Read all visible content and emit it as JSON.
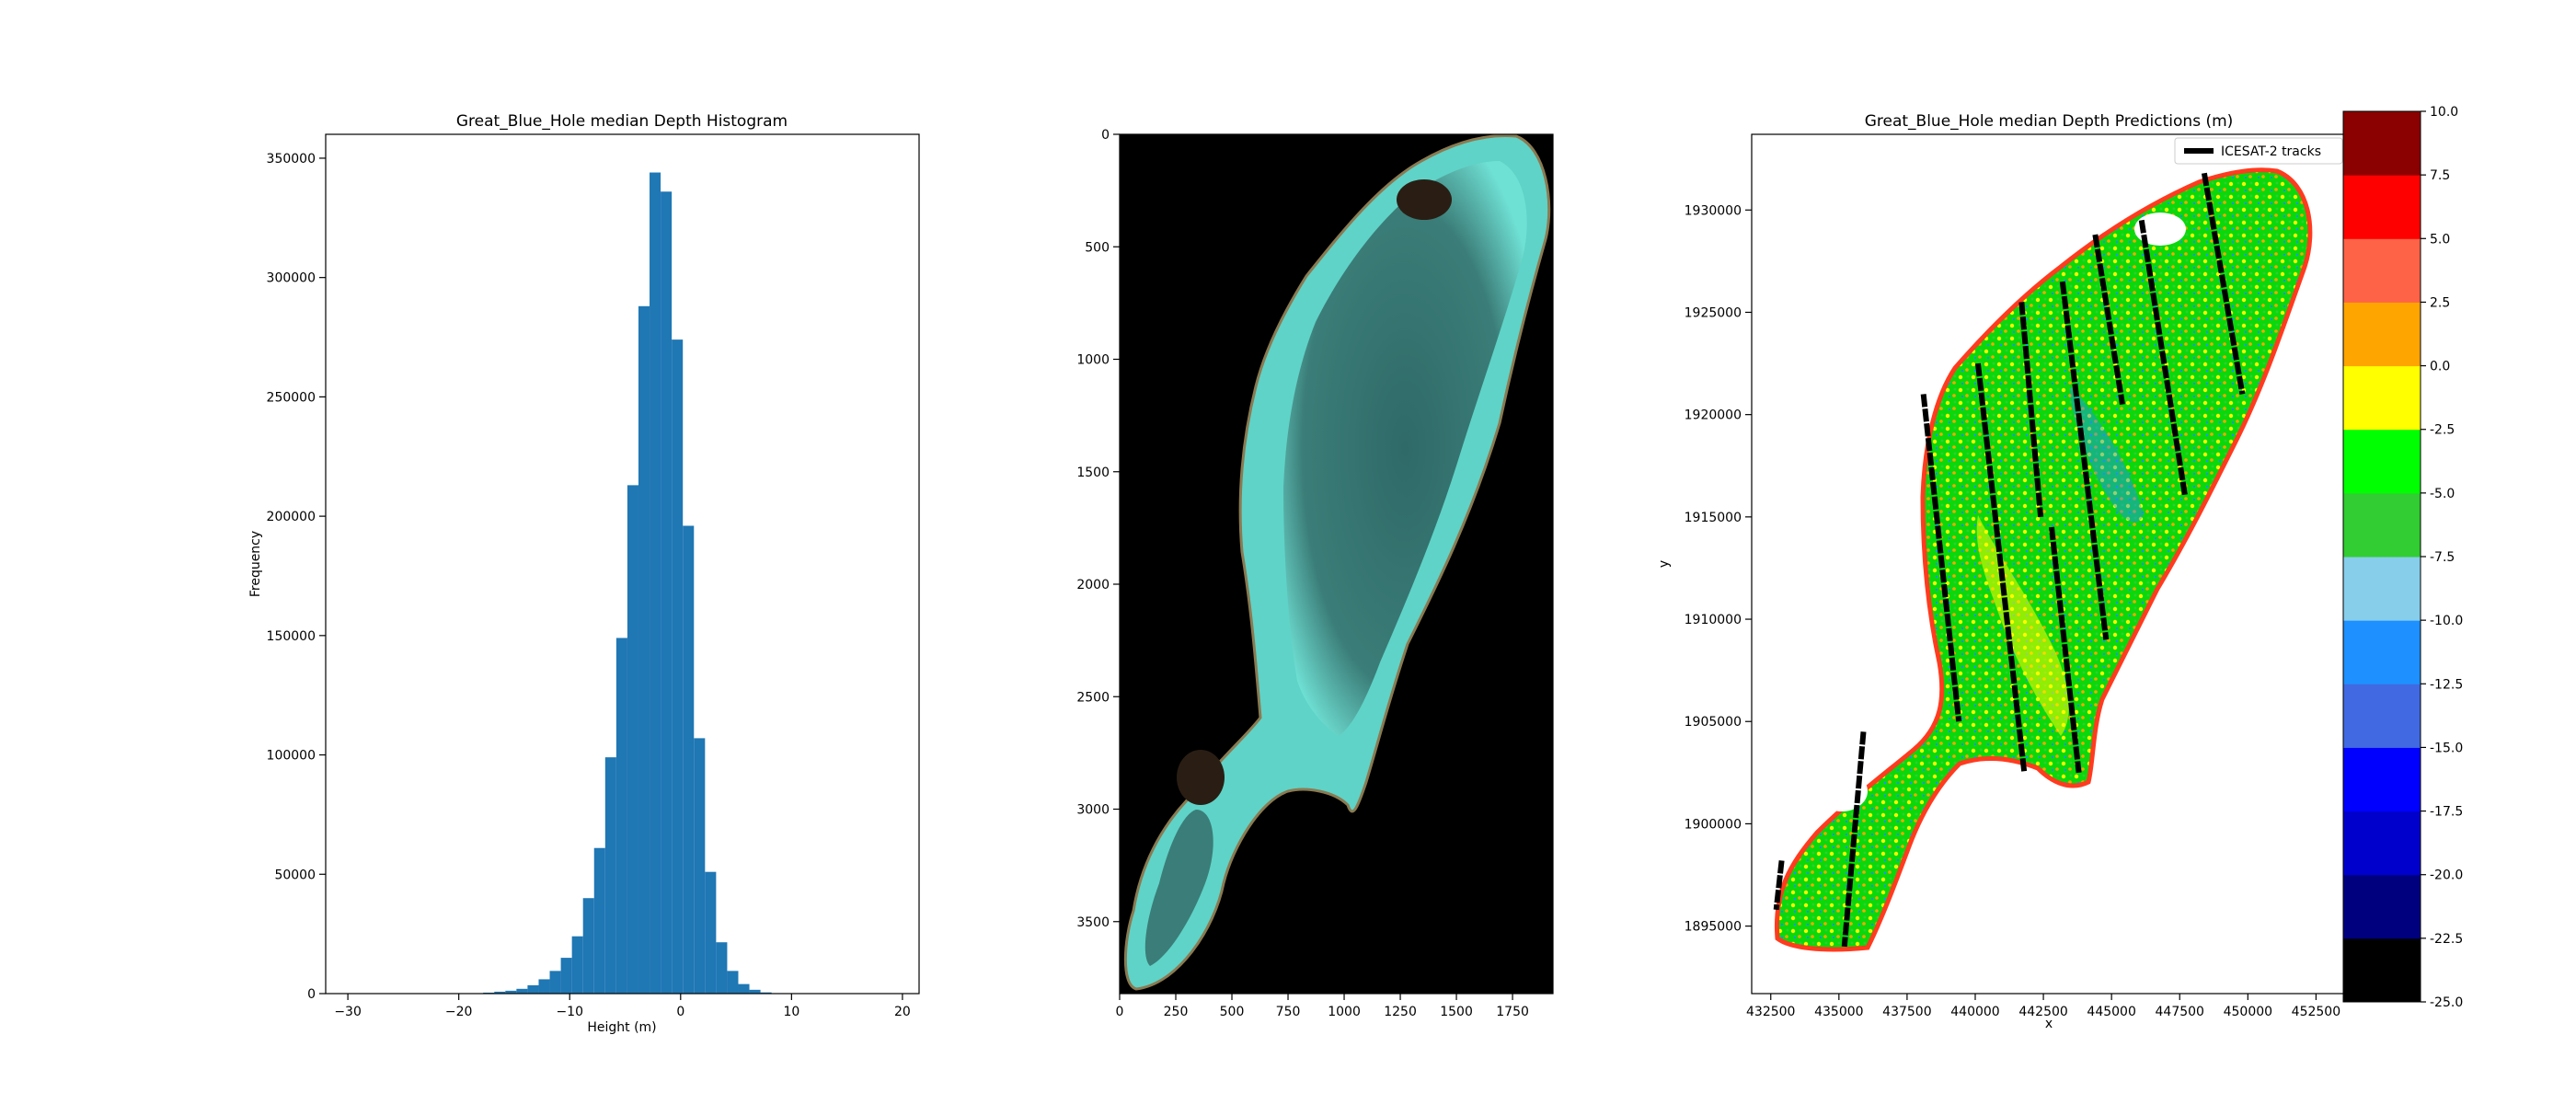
{
  "chart_data": [
    {
      "type": "bar",
      "title": "Great_Blue_Hole median Depth Histogram",
      "xlabel": "Height (m)",
      "ylabel": "Frequency",
      "xlim": [
        -32,
        21.5
      ],
      "ylim": [
        0,
        360000
      ],
      "xticks": [
        -30,
        -20,
        -10,
        0,
        10,
        20
      ],
      "yticks": [
        0,
        50000,
        100000,
        150000,
        200000,
        250000,
        300000,
        350000
      ],
      "bar_color": "#1f77b4",
      "bins": [
        {
          "x0": -17.8,
          "x1": -16.8,
          "v": 400
        },
        {
          "x0": -16.8,
          "x1": -15.8,
          "v": 800
        },
        {
          "x0": -15.8,
          "x1": -14.8,
          "v": 1200
        },
        {
          "x0": -14.8,
          "x1": -13.8,
          "v": 2000
        },
        {
          "x0": -13.8,
          "x1": -12.8,
          "v": 3500
        },
        {
          "x0": -12.8,
          "x1": -11.8,
          "v": 6000
        },
        {
          "x0": -11.8,
          "x1": -10.8,
          "v": 9500
        },
        {
          "x0": -10.8,
          "x1": -9.8,
          "v": 15000
        },
        {
          "x0": -9.8,
          "x1": -8.8,
          "v": 24000
        },
        {
          "x0": -8.8,
          "x1": -7.8,
          "v": 40000
        },
        {
          "x0": -7.8,
          "x1": -6.8,
          "v": 61000
        },
        {
          "x0": -6.8,
          "x1": -5.8,
          "v": 99000
        },
        {
          "x0": -5.8,
          "x1": -4.8,
          "v": 149000
        },
        {
          "x0": -4.8,
          "x1": -3.8,
          "v": 213000
        },
        {
          "x0": -3.8,
          "x1": -2.8,
          "v": 288000
        },
        {
          "x0": -2.8,
          "x1": -1.8,
          "v": 344000
        },
        {
          "x0": -1.8,
          "x1": -0.8,
          "v": 336000
        },
        {
          "x0": -0.8,
          "x1": 0.2,
          "v": 274000
        },
        {
          "x0": 0.2,
          "x1": 1.2,
          "v": 196000
        },
        {
          "x0": 1.2,
          "x1": 2.2,
          "v": 107000
        },
        {
          "x0": 2.2,
          "x1": 3.2,
          "v": 51000
        },
        {
          "x0": 3.2,
          "x1": 4.2,
          "v": 21500
        },
        {
          "x0": 4.2,
          "x1": 5.2,
          "v": 9500
        },
        {
          "x0": 5.2,
          "x1": 6.2,
          "v": 4000
        },
        {
          "x0": 6.2,
          "x1": 7.2,
          "v": 1600
        },
        {
          "x0": 7.2,
          "x1": 8.2,
          "v": 500
        }
      ]
    },
    {
      "type": "image",
      "xlim": [
        0,
        1930
      ],
      "ylim": [
        3820,
        0
      ],
      "xticks": [
        0,
        250,
        500,
        750,
        1000,
        1250,
        1500,
        1750
      ],
      "yticks": [
        0,
        500,
        1000,
        1500,
        2000,
        2500,
        3000,
        3500
      ],
      "background_color": "#000000",
      "reef_color": "#5fd3c7",
      "lagoon_color": "#2f5c5a"
    },
    {
      "type": "scatter",
      "title": "Great_Blue_Hole median Depth Predictions (m)",
      "xlabel": "x",
      "ylabel": "y",
      "xlim": [
        431800,
        453600
      ],
      "ylim": [
        1891700,
        1933700
      ],
      "xticks": [
        432500,
        435000,
        437500,
        440000,
        442500,
        445000,
        447500,
        450000,
        452500
      ],
      "yticks": [
        1895000,
        1900000,
        1905000,
        1910000,
        1915000,
        1920000,
        1925000,
        1930000
      ],
      "legend": {
        "label": "ICESAT-2 tracks",
        "placement": "top-right",
        "color": "#000000"
      },
      "tracks": [
        [
          [
            432900,
            1898200
          ],
          [
            432700,
            1895800
          ]
        ],
        [
          [
            435900,
            1904500
          ],
          [
            435200,
            1894000
          ]
        ],
        [
          [
            438100,
            1921000
          ],
          [
            439400,
            1905000
          ]
        ],
        [
          [
            440100,
            1922500
          ],
          [
            441800,
            1902500
          ]
        ],
        [
          [
            441700,
            1925500
          ],
          [
            442400,
            1915000
          ]
        ],
        [
          [
            443200,
            1926500
          ],
          [
            444800,
            1909000
          ]
        ],
        [
          [
            444400,
            1928800
          ],
          [
            445400,
            1920500
          ]
        ],
        [
          [
            446100,
            1929500
          ],
          [
            447700,
            1916000
          ]
        ],
        [
          [
            448400,
            1931800
          ],
          [
            449800,
            1921000
          ]
        ],
        [
          [
            442800,
            1914500
          ],
          [
            443800,
            1902500
          ]
        ]
      ],
      "colorbar": {
        "boundaries": [
          -25.0,
          -22.5,
          -20.0,
          -17.5,
          -15.0,
          -12.5,
          -10.0,
          -7.5,
          -5.0,
          -2.5,
          0.0,
          2.5,
          5.0,
          7.5,
          10.0
        ],
        "tick_labels": [
          "-25.0",
          "-22.5",
          "-20.0",
          "-17.5",
          "-15.0",
          "-12.5",
          "-10.0",
          "-7.5",
          "-5.0",
          "-2.5",
          "0.0",
          "2.5",
          "5.0",
          "7.5",
          "10.0"
        ],
        "colors": [
          "#000000",
          "#00007f",
          "#0000cd",
          "#0000ff",
          "#4169e1",
          "#1e90ff",
          "#87ceeb",
          "#32cd32",
          "#00ff00",
          "#ffff00",
          "#ffa500",
          "#ff6347",
          "#ff0000",
          "#8b0000"
        ]
      }
    }
  ]
}
